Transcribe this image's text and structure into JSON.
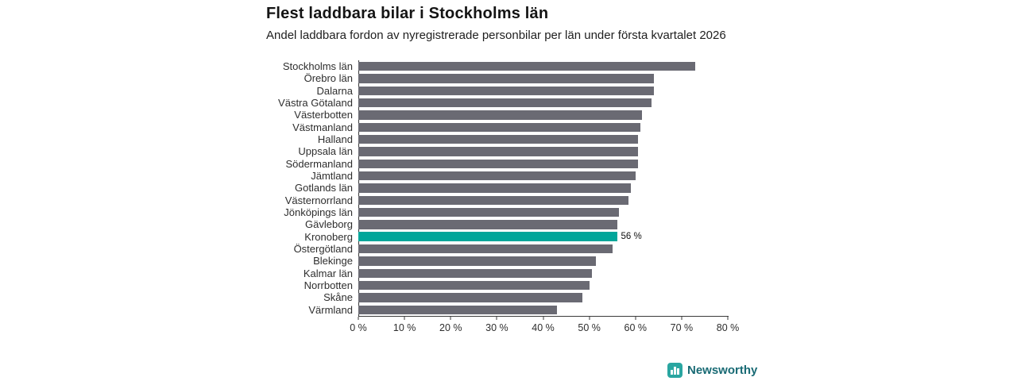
{
  "colors": {
    "bar": "#6a6a73",
    "highlight": "#00a69a",
    "axis": "#3a3a3a",
    "brand_text": "#186a74",
    "brand_icon": "#2aa6a1"
  },
  "footer": {
    "brand": "Newsworthy"
  },
  "chart_data": {
    "type": "bar",
    "orientation": "horizontal",
    "title": "Flest laddbara bilar i Stockholms län",
    "subtitle": "Andel laddbara fordon av nyregistrerade personbilar per län under första kvartalet 2026",
    "categories": [
      "Stockholms län",
      "Örebro län",
      "Dalarna",
      "Västra Götaland",
      "Västerbotten",
      "Västmanland",
      "Halland",
      "Uppsala län",
      "Södermanland",
      "Jämtland",
      "Gotlands län",
      "Västernorrland",
      "Jönköpings län",
      "Gävleborg",
      "Kronoberg",
      "Östergötland",
      "Blekinge",
      "Kalmar län",
      "Norrbotten",
      "Skåne",
      "Värmland"
    ],
    "values": [
      73,
      64,
      64,
      63.5,
      61.5,
      61,
      60.5,
      60.5,
      60.5,
      60,
      59,
      58.5,
      56.5,
      56,
      56,
      55,
      51.5,
      50.5,
      50,
      48.5,
      43
    ],
    "unit": "%",
    "xlim": [
      0,
      80
    ],
    "x_ticks": [
      "0 %",
      "10 %",
      "20 %",
      "30 %",
      "40 %",
      "50 %",
      "60 %",
      "70 %",
      "80 %"
    ],
    "grid": false,
    "legend": false,
    "highlight": {
      "category": "Kronoberg",
      "value": 56,
      "value_label": "56 %"
    }
  }
}
